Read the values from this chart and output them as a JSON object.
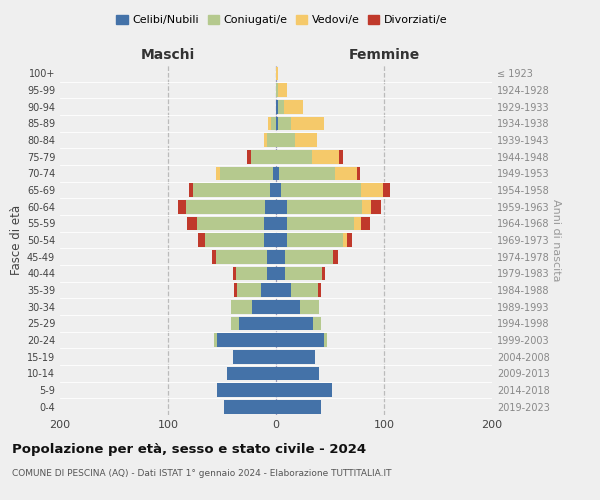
{
  "age_groups": [
    "0-4",
    "5-9",
    "10-14",
    "15-19",
    "20-24",
    "25-29",
    "30-34",
    "35-39",
    "40-44",
    "45-49",
    "50-54",
    "55-59",
    "60-64",
    "65-69",
    "70-74",
    "75-79",
    "80-84",
    "85-89",
    "90-94",
    "95-99",
    "100+"
  ],
  "birth_years": [
    "2019-2023",
    "2014-2018",
    "2009-2013",
    "2004-2008",
    "1999-2003",
    "1994-1998",
    "1989-1993",
    "1984-1988",
    "1979-1983",
    "1974-1978",
    "1969-1973",
    "1964-1968",
    "1959-1963",
    "1954-1958",
    "1949-1953",
    "1944-1948",
    "1939-1943",
    "1934-1938",
    "1929-1933",
    "1924-1928",
    "≤ 1923"
  ],
  "males": {
    "celibi": [
      48,
      55,
      45,
      40,
      55,
      34,
      22,
      14,
      8,
      8,
      11,
      11,
      10,
      6,
      3,
      0,
      0,
      0,
      0,
      0,
      0
    ],
    "coniugati": [
      0,
      0,
      0,
      0,
      2,
      8,
      20,
      22,
      29,
      48,
      55,
      62,
      73,
      71,
      49,
      23,
      8,
      5,
      0,
      0,
      0
    ],
    "vedovi": [
      0,
      0,
      0,
      0,
      0,
      0,
      0,
      0,
      0,
      0,
      0,
      0,
      0,
      0,
      4,
      0,
      3,
      2,
      0,
      0,
      0
    ],
    "divorziati": [
      0,
      0,
      0,
      0,
      0,
      0,
      0,
      3,
      3,
      3,
      6,
      9,
      8,
      4,
      0,
      4,
      0,
      0,
      0,
      0,
      0
    ]
  },
  "females": {
    "nubili": [
      42,
      52,
      40,
      36,
      44,
      34,
      22,
      14,
      8,
      8,
      10,
      10,
      10,
      5,
      3,
      0,
      0,
      2,
      2,
      0,
      0
    ],
    "coniugate": [
      0,
      0,
      0,
      0,
      3,
      8,
      18,
      25,
      35,
      45,
      52,
      62,
      70,
      74,
      52,
      33,
      18,
      12,
      5,
      2,
      0
    ],
    "vedove": [
      0,
      0,
      0,
      0,
      0,
      0,
      0,
      0,
      0,
      0,
      4,
      7,
      8,
      20,
      20,
      25,
      20,
      30,
      18,
      8,
      2
    ],
    "divorziate": [
      0,
      0,
      0,
      0,
      0,
      0,
      0,
      3,
      2,
      4,
      4,
      8,
      9,
      7,
      3,
      4,
      0,
      0,
      0,
      0,
      0
    ]
  },
  "colors": {
    "celibi": "#4472a8",
    "coniugati": "#b5c98e",
    "vedovi": "#f5c96a",
    "divorziati": "#c0392b"
  },
  "title": "Popolazione per età, sesso e stato civile - 2024",
  "subtitle": "COMUNE DI PESCINA (AQ) - Dati ISTAT 1° gennaio 2024 - Elaborazione TUTTITALIA.IT",
  "xlabel_left": "Maschi",
  "xlabel_right": "Femmine",
  "ylabel_left": "Fasce di età",
  "ylabel_right": "Anni di nascita",
  "xlim": 200,
  "bg_color": "#efefef",
  "legend_labels": [
    "Celibi/Nubili",
    "Coniugati/e",
    "Vedovi/e",
    "Divorziati/e"
  ]
}
